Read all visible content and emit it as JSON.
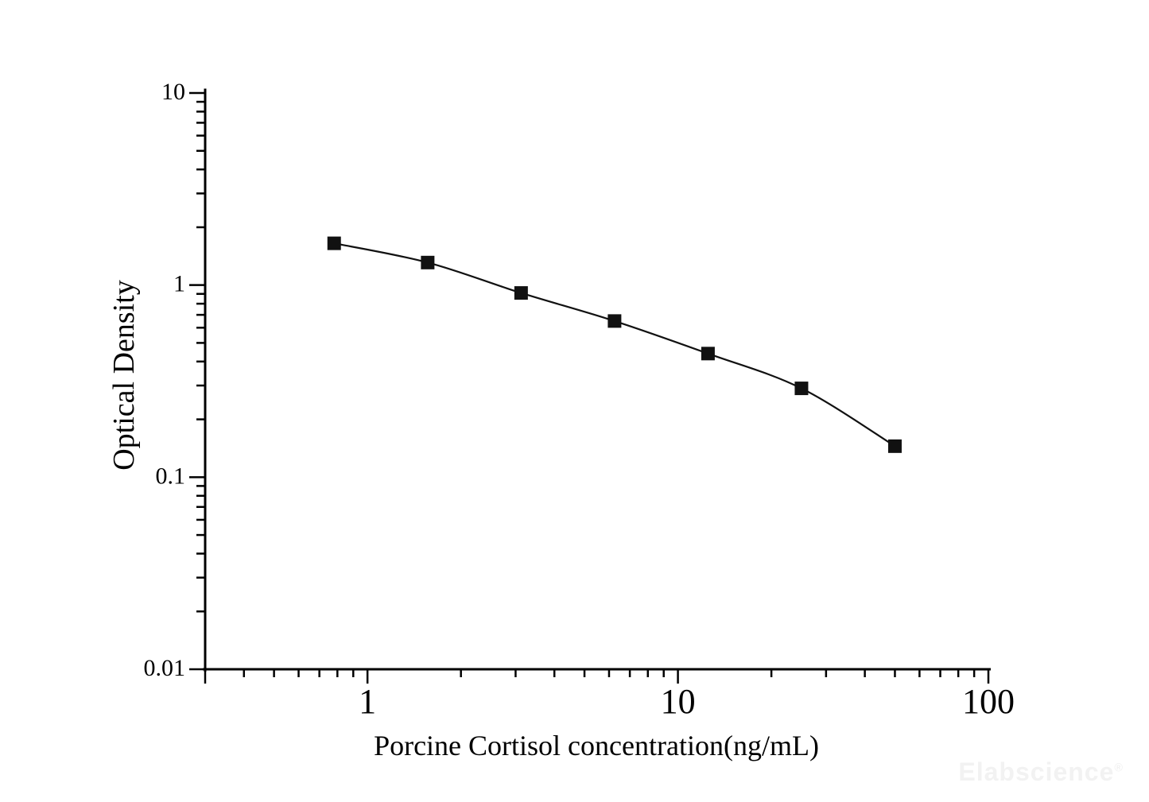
{
  "figure": {
    "background_color": "#ffffff",
    "axis_color": "#000000",
    "series_color": "#111111"
  },
  "watermark": {
    "text": "Elabscience",
    "registered": "®",
    "color": "#f2f2f2"
  },
  "chart_data": {
    "type": "line",
    "subtype": "scatter-line-standard-curve",
    "title": "",
    "xlabel": "Porcine Cortisol concentration(ng/mL)",
    "ylabel": "Optical Density",
    "x_scale": "log",
    "y_scale": "log",
    "xlim": [
      0.3,
      100
    ],
    "ylim": [
      0.01,
      10
    ],
    "grid": false,
    "legend_position": "none",
    "x_major_ticks": [
      {
        "value": 1,
        "label": "1"
      },
      {
        "value": 10,
        "label": "10"
      },
      {
        "value": 100,
        "label": "100"
      }
    ],
    "y_major_ticks": [
      {
        "value": 10,
        "label": "10"
      },
      {
        "value": 1,
        "label": "1"
      },
      {
        "value": 0.1,
        "label": "0.1"
      },
      {
        "value": 0.01,
        "label": "0.01"
      }
    ],
    "series": [
      {
        "name": "standard-curve",
        "marker": "filled-square",
        "marker_size_px": 17,
        "marker_color": "#111111",
        "line_color": "#111111",
        "points": [
          {
            "x": 0.781,
            "y": 1.65
          },
          {
            "x": 1.563,
            "y": 1.31
          },
          {
            "x": 3.125,
            "y": 0.91
          },
          {
            "x": 6.25,
            "y": 0.65
          },
          {
            "x": 12.5,
            "y": 0.44
          },
          {
            "x": 25,
            "y": 0.29
          },
          {
            "x": 50,
            "y": 0.145
          }
        ]
      }
    ]
  }
}
